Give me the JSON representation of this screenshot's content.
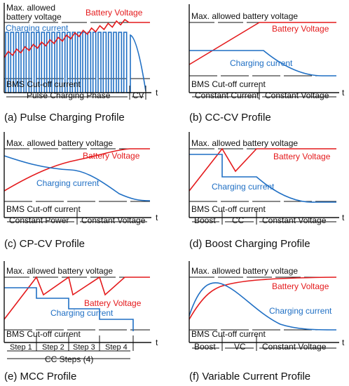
{
  "colors": {
    "battery": "#e41a1c",
    "current": "#1f6fc4"
  },
  "common": {
    "max_voltage": "Max. allowed battery voltage",
    "max_voltage_line1": "Max. allowed",
    "max_voltage_line2": "battery voltage",
    "battery_voltage": "Battery Voltage",
    "charging_current": "Charging current",
    "bms_cutoff": "BMS Cut-off current",
    "t": "t"
  },
  "panels": {
    "a": {
      "caption": "(a) Pulse Charging Profile",
      "phases": [
        "Pulse Charging Phase",
        "CV"
      ]
    },
    "b": {
      "caption": "(b) CC-CV Profile",
      "phases": [
        "Constant Current",
        "Constant Voltage"
      ]
    },
    "c": {
      "caption": "(c) CP-CV Profile",
      "phases": [
        "Constant Power",
        "Constant Voltage"
      ]
    },
    "d": {
      "caption": "(d) Boost Charging Profile",
      "phases": [
        "Boost",
        "CC",
        "Constant Voltage"
      ]
    },
    "e": {
      "caption": "(e) MCC Profile",
      "phases": [
        "Step 1",
        "Step 2",
        "Step 3",
        "Step 4"
      ],
      "steps_label": "CC Steps (4)"
    },
    "f": {
      "caption": "(f) Variable Current Profile",
      "phases": [
        "Boost",
        "VC",
        "Constant Voltage"
      ]
    }
  }
}
